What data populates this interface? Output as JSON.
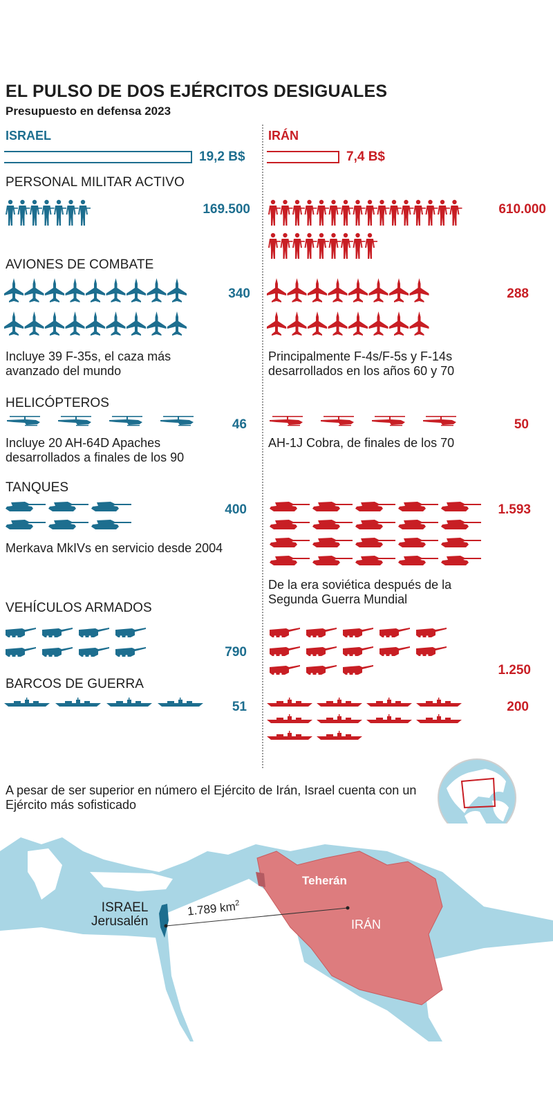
{
  "title": "EL PULSO DE DOS EJÉRCITOS DESIGUALES",
  "subtitle": "Presupuesto en defensa 2023",
  "colors": {
    "israel": "#1d6e8f",
    "iran": "#c81e24",
    "sea": "#a9d6e5",
    "land": "#ffffff",
    "iran_map": "#dd7c7e"
  },
  "countries": {
    "israel": "ISRAEL",
    "iran": "IRÁN"
  },
  "chart_data": {
    "type": "bar",
    "title": "EL PULSO DE DOS EJÉRCITOS DESIGUALES",
    "subtitle": "Presupuesto en defensa 2023",
    "categories": [
      "ISRAEL",
      "IRÁN"
    ],
    "budget": {
      "label_isr": "19,2 B$",
      "label_irn": "7,4 B$",
      "values": [
        19.2,
        7.4
      ]
    },
    "sections": [
      {
        "key": "personal",
        "label": "PERSONAL MILITAR ACTIVO",
        "icon": "soldier-icon",
        "israel": {
          "value": 169500,
          "display": "169.500",
          "icons": 7,
          "note": ""
        },
        "iran": {
          "value": 610000,
          "display": "610.000",
          "icons": 25,
          "note": ""
        }
      },
      {
        "key": "aviones",
        "label": "AVIONES DE COMBATE",
        "icon": "fighter-jet-icon",
        "israel": {
          "value": 340,
          "display": "340",
          "icons": 18,
          "note": "Incluye 39 F-35s, el caza más avanzado del mundo"
        },
        "iran": {
          "value": 288,
          "display": "288",
          "icons": 16,
          "note": "Principalmente F-4s/F-5s y F-14s desarrollados en los años 60 y 70"
        }
      },
      {
        "key": "helicopteros",
        "label": "HELICÓPTEROS",
        "icon": "helicopter-icon",
        "israel": {
          "value": 46,
          "display": "46",
          "icons": 4,
          "note": "Incluye 20 AH-64D Apaches desarrollados a finales de los 90"
        },
        "iran": {
          "value": 50,
          "display": "50",
          "icons": 4,
          "note": "AH-1J Cobra, de finales de los 70"
        }
      },
      {
        "key": "tanques",
        "label": "TANQUES",
        "icon": "tank-icon",
        "israel": {
          "value": 400,
          "display": "400",
          "icons": 6,
          "note": "Merkava MkIVs en servicio desde 2004"
        },
        "iran": {
          "value": 1593,
          "display": "1.593",
          "icons": 20,
          "note": "De la era soviética después de la Segunda Guerra Mundial"
        }
      },
      {
        "key": "vehiculos",
        "label": "VEHÍCULOS ARMADOS",
        "icon": "armored-vehicle-icon",
        "israel": {
          "value": 790,
          "display": "790",
          "icons": 8,
          "note": ""
        },
        "iran": {
          "value": 1250,
          "display": "1.250",
          "icons": 13,
          "note": ""
        }
      },
      {
        "key": "barcos",
        "label": "BARCOS DE GUERRA",
        "icon": "warship-icon",
        "israel": {
          "value": 51,
          "display": "51",
          "icons": 4,
          "note": ""
        },
        "iran": {
          "value": 200,
          "display": "200",
          "icons": 10,
          "note": ""
        }
      }
    ]
  },
  "map": {
    "intro": "A pesar de ser superior en número el Ejército de Irán, Israel cuenta con un Ejército más sofisticado",
    "israel_label": "ISRAEL",
    "jerusalem_label": "Jerusalén",
    "tehran_label": "Teherán",
    "iran_label": "IRÁN",
    "distance_label": "1.789 km",
    "distance_sup": "2"
  }
}
